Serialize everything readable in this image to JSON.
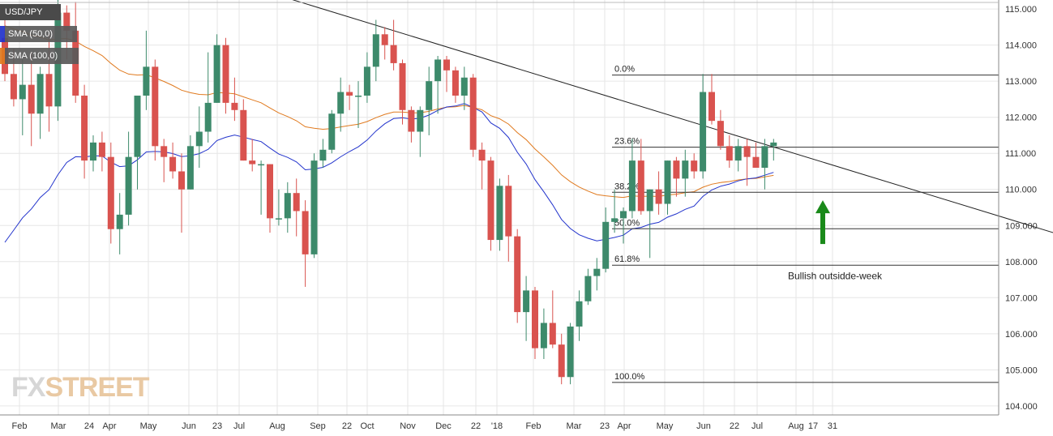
{
  "header": {
    "symbol": "USD/JPY",
    "sma50_label": "SMA (50,0)",
    "sma100_label": "SMA (100,0)",
    "sma50_color": "#2233cc",
    "sma100_color": "#e07a1f"
  },
  "logo": {
    "part1": "FX",
    "part2": "STREET"
  },
  "colors": {
    "up": "#3d8a6b",
    "down": "#d9534f",
    "trendline": "#222222",
    "fib": "#333333",
    "arrow": "#1a8a1a",
    "grid": "#e6e6e6"
  },
  "chart_data": {
    "type": "candlestick",
    "timeframe": "weekly",
    "ylim": [
      103.75,
      115.25
    ],
    "y_ticks": [
      "104.000",
      "105.000",
      "106.000",
      "107.000",
      "108.000",
      "109.000",
      "110.000",
      "111.000",
      "112.000",
      "113.000",
      "114.000",
      "115.000"
    ],
    "x_tick_labels": [
      "Feb",
      "Mar",
      "24",
      "Apr",
      "May",
      "Jun",
      "23",
      "Jul",
      "Aug",
      "Sep",
      "22",
      "Oct",
      "Nov",
      "Dec",
      "22",
      "'18",
      "Feb",
      "Mar",
      "23",
      "Apr",
      "May",
      "Jun",
      "22",
      "Jul",
      "Aug",
      "17",
      "31"
    ],
    "fibonacci": [
      {
        "label": "0.0%",
        "value": 113.17
      },
      {
        "label": "23.6%",
        "value": 111.17
      },
      {
        "label": "38.2%",
        "value": 109.92
      },
      {
        "label": "50.0%",
        "value": 108.91
      },
      {
        "label": "61.8%",
        "value": 107.9
      },
      {
        "label": "100.0%",
        "value": 104.65
      }
    ],
    "annotation": {
      "text": "Bullish outsidde-week",
      "arrow_value": 109.7
    },
    "trendline": [
      {
        "week": 0,
        "value": 117.7
      },
      {
        "week": 120,
        "value": 108.7
      }
    ],
    "candles": [
      [
        114.2,
        115.0,
        113.0,
        113.2
      ],
      [
        113.2,
        113.9,
        112.3,
        112.5
      ],
      [
        112.5,
        113.6,
        111.5,
        112.9
      ],
      [
        112.9,
        113.8,
        111.2,
        112.1
      ],
      [
        112.1,
        113.4,
        111.4,
        113.2
      ],
      [
        113.2,
        114.3,
        111.6,
        112.3
      ],
      [
        112.3,
        115.5,
        111.9,
        114.9
      ],
      [
        114.9,
        115.1,
        113.6,
        114.4
      ],
      [
        114.4,
        115.2,
        112.4,
        112.6
      ],
      [
        112.6,
        112.9,
        110.3,
        110.8
      ],
      [
        110.8,
        111.5,
        110.5,
        111.3
      ],
      [
        111.3,
        111.6,
        110.5,
        110.9
      ],
      [
        110.9,
        111.3,
        108.5,
        108.9
      ],
      [
        108.9,
        109.9,
        108.2,
        109.3
      ],
      [
        109.3,
        111.6,
        109.0,
        110.9
      ],
      [
        110.9,
        112.6,
        110.0,
        112.6
      ],
      [
        112.6,
        114.4,
        112.2,
        113.4
      ],
      [
        113.4,
        113.6,
        110.8,
        111.2
      ],
      [
        111.2,
        111.4,
        110.2,
        110.9
      ],
      [
        110.9,
        111.3,
        110.3,
        110.5
      ],
      [
        110.5,
        111.0,
        108.8,
        110.0
      ],
      [
        110.0,
        111.5,
        110.0,
        111.2
      ],
      [
        111.2,
        112.3,
        110.6,
        111.6
      ],
      [
        111.6,
        113.8,
        111.3,
        112.4
      ],
      [
        112.4,
        114.3,
        112.4,
        114.0
      ],
      [
        114.0,
        114.2,
        112.1,
        112.4
      ],
      [
        112.4,
        113.1,
        111.9,
        112.2
      ],
      [
        112.2,
        112.5,
        110.8,
        110.8
      ],
      [
        110.8,
        111.4,
        110.5,
        110.7
      ],
      [
        110.7,
        110.8,
        109.3,
        110.7
      ],
      [
        110.7,
        110.7,
        108.8,
        109.2
      ],
      [
        109.2,
        110.0,
        109.0,
        109.2
      ],
      [
        109.2,
        110.2,
        108.8,
        109.9
      ],
      [
        109.9,
        110.3,
        108.7,
        109.4
      ],
      [
        109.4,
        109.7,
        107.3,
        108.2
      ],
      [
        108.2,
        111.0,
        108.1,
        110.8
      ],
      [
        110.8,
        111.4,
        110.6,
        111.1
      ],
      [
        111.1,
        112.2,
        111.0,
        112.1
      ],
      [
        112.1,
        113.1,
        111.6,
        112.7
      ],
      [
        112.7,
        112.9,
        112.2,
        112.6
      ],
      [
        112.6,
        113.0,
        111.7,
        112.6
      ],
      [
        112.6,
        113.8,
        112.4,
        113.4
      ],
      [
        113.4,
        114.7,
        113.0,
        114.3
      ],
      [
        114.3,
        114.5,
        113.6,
        114.0
      ],
      [
        114.0,
        114.7,
        113.3,
        113.5
      ],
      [
        113.5,
        113.6,
        111.8,
        112.2
      ],
      [
        112.2,
        112.3,
        111.3,
        111.6
      ],
      [
        111.6,
        112.3,
        110.9,
        112.2
      ],
      [
        112.2,
        113.4,
        111.5,
        113.0
      ],
      [
        113.0,
        113.7,
        112.1,
        113.6
      ],
      [
        113.6,
        113.7,
        112.7,
        113.3
      ],
      [
        113.3,
        113.4,
        112.4,
        112.6
      ],
      [
        112.6,
        113.4,
        112.2,
        113.1
      ],
      [
        113.1,
        113.2,
        110.9,
        111.1
      ],
      [
        111.1,
        111.3,
        110.0,
        110.8
      ],
      [
        110.8,
        110.9,
        108.3,
        108.6
      ],
      [
        108.6,
        110.3,
        108.3,
        110.1
      ],
      [
        110.1,
        110.4,
        108.0,
        108.7
      ],
      [
        108.7,
        108.9,
        106.3,
        106.6
      ],
      [
        106.6,
        107.6,
        105.8,
        107.2
      ],
      [
        107.2,
        107.3,
        105.3,
        105.6
      ],
      [
        105.6,
        106.7,
        105.3,
        106.3
      ],
      [
        106.3,
        107.2,
        105.6,
        105.7
      ],
      [
        105.7,
        106.0,
        104.6,
        104.8
      ],
      [
        104.8,
        106.3,
        104.6,
        106.2
      ],
      [
        106.2,
        107.2,
        105.8,
        106.9
      ],
      [
        106.9,
        107.8,
        106.8,
        107.6
      ],
      [
        107.6,
        108.1,
        107.2,
        107.8
      ],
      [
        107.8,
        109.5,
        107.7,
        109.1
      ],
      [
        109.1,
        110.0,
        108.8,
        109.2
      ],
      [
        109.2,
        109.5,
        108.5,
        109.4
      ],
      [
        109.4,
        111.4,
        109.2,
        110.8
      ],
      [
        110.8,
        111.4,
        109.3,
        109.4
      ],
      [
        109.4,
        110.0,
        108.1,
        110.0
      ],
      [
        110.0,
        110.5,
        109.3,
        109.6
      ],
      [
        109.6,
        110.8,
        109.3,
        110.8
      ],
      [
        110.8,
        110.9,
        109.8,
        110.3
      ],
      [
        110.3,
        111.1,
        109.8,
        110.8
      ],
      [
        110.8,
        111.0,
        110.3,
        110.5
      ],
      [
        110.5,
        113.2,
        110.3,
        112.7
      ],
      [
        112.7,
        113.2,
        111.8,
        111.9
      ],
      [
        111.9,
        112.2,
        111.1,
        111.2
      ],
      [
        111.2,
        111.5,
        110.6,
        110.8
      ],
      [
        110.8,
        111.4,
        110.5,
        111.2
      ],
      [
        111.2,
        111.4,
        110.1,
        110.9
      ],
      [
        110.9,
        111.3,
        110.6,
        110.6
      ],
      [
        110.6,
        111.4,
        110.0,
        111.2
      ],
      [
        111.2,
        111.4,
        110.8,
        111.3
      ]
    ]
  }
}
